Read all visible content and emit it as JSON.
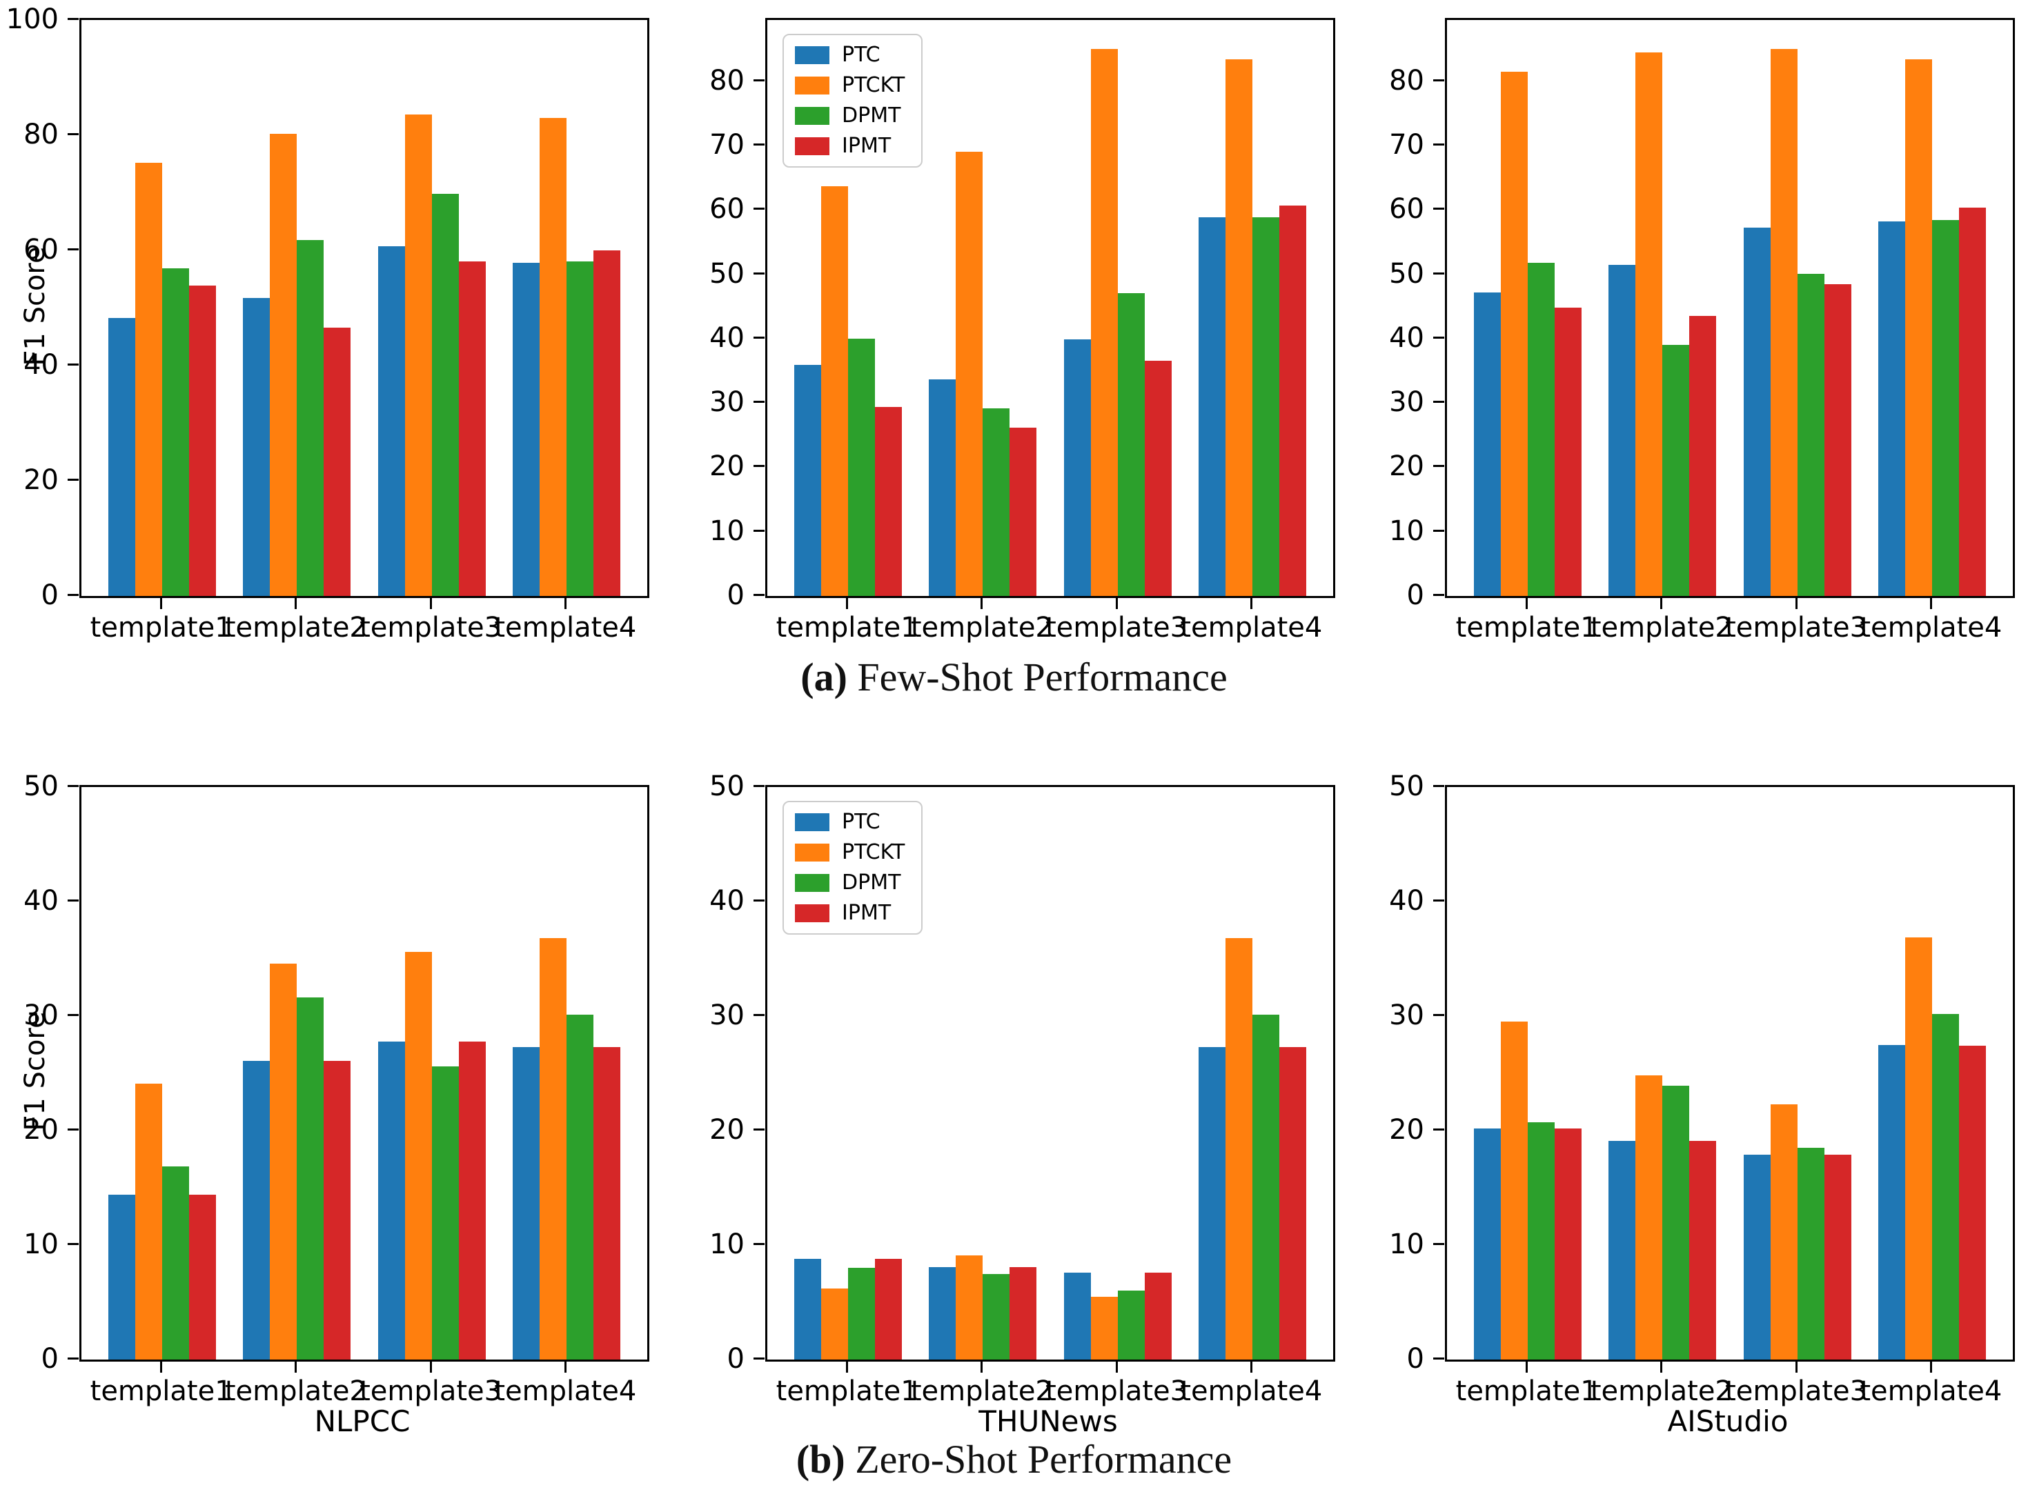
{
  "figure": {
    "background": "#ffffff",
    "captions": {
      "a_marker": "(a)",
      "a_text": " Few-Shot Performance",
      "b_marker": "(b)",
      "b_text": " Zero-Shot Performance"
    },
    "series_names": [
      "PTC",
      "PTCKT",
      "DPMT",
      "IPMT"
    ],
    "series_colors": {
      "PTC": "#1f77b4",
      "PTCKT": "#ff7f0e",
      "DPMT": "#2ca02c",
      "IPMT": "#d62728"
    },
    "legend_items": [
      {
        "label": "PTC",
        "color": "#1f77b4"
      },
      {
        "label": "PTCKT",
        "color": "#ff7f0e"
      },
      {
        "label": "DPMT",
        "color": "#2ca02c"
      },
      {
        "label": "IPMT",
        "color": "#d62728"
      }
    ],
    "categories": [
      "template1",
      "template2",
      "template3",
      "template4"
    ]
  },
  "chart_data": [
    {
      "type": "bar",
      "id": "few-shot-left",
      "title": "",
      "xlabel": "",
      "ylabel": "F1 Score",
      "ylim": [
        0,
        100
      ],
      "yticks": [
        0,
        20,
        40,
        60,
        80,
        100
      ],
      "grid": false,
      "legend": false,
      "categories": [
        "template1",
        "template2",
        "template3",
        "template4"
      ],
      "series": [
        {
          "name": "PTC",
          "values": [
            48.3,
            51.8,
            60.7,
            57.8
          ]
        },
        {
          "name": "PTCKT",
          "values": [
            75.2,
            80.3,
            83.6,
            83.0
          ]
        },
        {
          "name": "DPMT",
          "values": [
            56.9,
            61.8,
            69.8,
            58.1
          ]
        },
        {
          "name": "IPMT",
          "values": [
            53.9,
            46.6,
            58.1,
            60.0
          ]
        }
      ]
    },
    {
      "type": "bar",
      "id": "few-shot-middle",
      "title": "",
      "xlabel": "",
      "ylabel": "",
      "ylim": [
        0,
        89.5
      ],
      "yticks": [
        0,
        10,
        20,
        30,
        40,
        50,
        60,
        70,
        80
      ],
      "grid": false,
      "legend": true,
      "legend_position": "upper-left",
      "categories": [
        "template1",
        "template2",
        "template3",
        "template4"
      ],
      "series": [
        {
          "name": "PTC",
          "values": [
            35.9,
            33.7,
            39.9,
            58.8
          ]
        },
        {
          "name": "PTCKT",
          "values": [
            63.7,
            69.0,
            85.0,
            83.4
          ]
        },
        {
          "name": "DPMT",
          "values": [
            40.0,
            29.2,
            47.1,
            58.9
          ]
        },
        {
          "name": "IPMT",
          "values": [
            29.4,
            26.2,
            36.6,
            60.7
          ]
        }
      ]
    },
    {
      "type": "bar",
      "id": "few-shot-right",
      "title": "",
      "xlabel": "",
      "ylabel": "",
      "ylim": [
        0,
        89.5
      ],
      "yticks": [
        0,
        10,
        20,
        30,
        40,
        50,
        60,
        70,
        80
      ],
      "grid": false,
      "legend": false,
      "categories": [
        "template1",
        "template2",
        "template3",
        "template4"
      ],
      "series": [
        {
          "name": "PTC",
          "values": [
            47.2,
            51.5,
            57.2,
            58.2
          ]
        },
        {
          "name": "PTCKT",
          "values": [
            81.5,
            84.5,
            85.0,
            83.4
          ]
        },
        {
          "name": "DPMT",
          "values": [
            51.8,
            39.0,
            50.1,
            58.4
          ]
        },
        {
          "name": "IPMT",
          "values": [
            44.8,
            43.5,
            48.5,
            60.3
          ]
        }
      ]
    },
    {
      "type": "bar",
      "id": "zero-shot-left",
      "title": "",
      "xlabel": "NLPCC",
      "ylabel": "F1 Score",
      "ylim": [
        0,
        50
      ],
      "yticks": [
        0,
        10,
        20,
        30,
        40,
        50
      ],
      "grid": false,
      "legend": false,
      "categories": [
        "template1",
        "template2",
        "template3",
        "template4"
      ],
      "series": [
        {
          "name": "PTC",
          "values": [
            14.4,
            26.1,
            27.8,
            27.3
          ]
        },
        {
          "name": "PTCKT",
          "values": [
            24.1,
            34.6,
            35.6,
            36.8
          ]
        },
        {
          "name": "DPMT",
          "values": [
            16.9,
            31.6,
            25.6,
            30.1
          ]
        },
        {
          "name": "IPMT",
          "values": [
            14.4,
            26.1,
            27.8,
            27.3
          ]
        }
      ]
    },
    {
      "type": "bar",
      "id": "zero-shot-middle",
      "title": "",
      "xlabel": "THUNews",
      "ylabel": "",
      "ylim": [
        0,
        50
      ],
      "yticks": [
        0,
        10,
        20,
        30,
        40,
        50
      ],
      "grid": false,
      "legend": true,
      "legend_position": "upper-left",
      "categories": [
        "template1",
        "template2",
        "template3",
        "template4"
      ],
      "series": [
        {
          "name": "PTC",
          "values": [
            8.8,
            8.1,
            7.6,
            27.3
          ]
        },
        {
          "name": "PTCKT",
          "values": [
            6.2,
            9.1,
            5.5,
            36.8
          ]
        },
        {
          "name": "DPMT",
          "values": [
            8.0,
            7.5,
            6.0,
            30.1
          ]
        },
        {
          "name": "IPMT",
          "values": [
            8.8,
            8.1,
            7.6,
            27.3
          ]
        }
      ]
    },
    {
      "type": "bar",
      "id": "zero-shot-right",
      "title": "",
      "xlabel": "AIStudio",
      "ylabel": "",
      "ylim": [
        0,
        50
      ],
      "yticks": [
        0,
        10,
        20,
        30,
        40,
        50
      ],
      "grid": false,
      "legend": false,
      "categories": [
        "template1",
        "template2",
        "template3",
        "template4"
      ],
      "series": [
        {
          "name": "PTC",
          "values": [
            20.2,
            19.1,
            17.9,
            27.5
          ]
        },
        {
          "name": "PTCKT",
          "values": [
            29.5,
            24.8,
            22.3,
            36.9
          ]
        },
        {
          "name": "DPMT",
          "values": [
            20.7,
            23.9,
            18.5,
            30.2
          ]
        },
        {
          "name": "IPMT",
          "values": [
            20.2,
            19.1,
            17.9,
            27.4
          ]
        }
      ]
    }
  ]
}
